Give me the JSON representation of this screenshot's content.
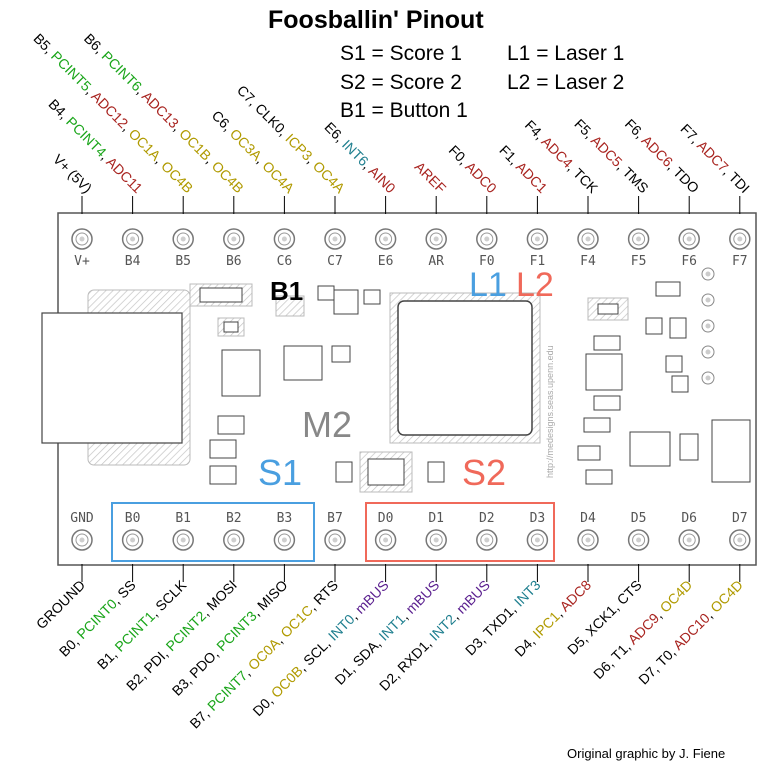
{
  "title": "Foosballin' Pinout",
  "legend": [
    {
      "key": "S1",
      "text": "S1 = Score 1"
    },
    {
      "key": "L1",
      "text": "L1 = Laser 1"
    },
    {
      "key": "S2",
      "text": "S2 = Score 2"
    },
    {
      "key": "L2",
      "text": "L2 = Laser 2"
    },
    {
      "key": "B1",
      "text": "B1 = Button 1"
    }
  ],
  "credit": "Original graphic by J. Fiene",
  "board": {
    "name": "M2",
    "side_text": "http://medesigns.seas.upenn.edu",
    "markers": {
      "B1": {
        "text": "B1",
        "color": "#000000"
      },
      "L1": {
        "text": "L1",
        "color": "#4a9fe0"
      },
      "L2": {
        "text": "L2",
        "color": "#f0695a"
      },
      "S1": {
        "text": "S1",
        "color": "#4a9fe0"
      },
      "S2": {
        "text": "S2",
        "color": "#f0695a"
      }
    },
    "top_pins": [
      "V+",
      "B4",
      "B5",
      "B6",
      "C6",
      "C7",
      "E6",
      "AR",
      "F0",
      "F1",
      "F4",
      "F5",
      "F6",
      "F7"
    ],
    "bottom_pins": [
      "GND",
      "B0",
      "B1",
      "B2",
      "B3",
      "B7",
      "D0",
      "D1",
      "D2",
      "D3",
      "D4",
      "D5",
      "D6",
      "D7"
    ]
  },
  "colors": {
    "black": "#000000",
    "green": "#1aa51a",
    "red": "#a8231f",
    "olive": "#b09a00",
    "teal": "#1f7f8f",
    "purple": "#5a1f8f",
    "blue_box": "#4a9fe0",
    "red_box": "#f0695a"
  },
  "top_labels": [
    {
      "pin": "V+",
      "parts": [
        {
          "t": "V+ (5V)",
          "c": "black"
        }
      ]
    },
    {
      "pin": "B4",
      "parts": [
        {
          "t": "B4, ",
          "c": "black"
        },
        {
          "t": "PCINT4",
          "c": "green"
        },
        {
          "t": ", ",
          "c": "black"
        },
        {
          "t": "ADC11",
          "c": "red"
        }
      ]
    },
    {
      "pin": "B5",
      "parts": [
        {
          "t": "B5, ",
          "c": "black"
        },
        {
          "t": "PCINT5",
          "c": "green"
        },
        {
          "t": ", ",
          "c": "black"
        },
        {
          "t": "ADC12",
          "c": "red"
        },
        {
          "t": ", ",
          "c": "black"
        },
        {
          "t": "OC1A",
          "c": "olive"
        },
        {
          "t": ", ",
          "c": "black"
        },
        {
          "t": "OC4B",
          "c": "olive"
        }
      ]
    },
    {
      "pin": "B6",
      "parts": [
        {
          "t": "B6, ",
          "c": "black"
        },
        {
          "t": "PCINT6",
          "c": "green"
        },
        {
          "t": ", ",
          "c": "black"
        },
        {
          "t": "ADC13",
          "c": "red"
        },
        {
          "t": ", ",
          "c": "black"
        },
        {
          "t": "OC1B",
          "c": "olive"
        },
        {
          "t": ", ",
          "c": "black"
        },
        {
          "t": "OC4B",
          "c": "olive"
        }
      ]
    },
    {
      "pin": "C6",
      "parts": [
        {
          "t": "C6, ",
          "c": "black"
        },
        {
          "t": "OC3A",
          "c": "olive"
        },
        {
          "t": ", ",
          "c": "black"
        },
        {
          "t": "OC4A",
          "c": "olive"
        }
      ]
    },
    {
      "pin": "C7",
      "parts": [
        {
          "t": "C7, CLK0, ",
          "c": "black"
        },
        {
          "t": "ICP3",
          "c": "olive"
        },
        {
          "t": ", ",
          "c": "black"
        },
        {
          "t": "OC4A",
          "c": "olive"
        }
      ]
    },
    {
      "pin": "E6",
      "parts": [
        {
          "t": "E6, ",
          "c": "black"
        },
        {
          "t": "INT6",
          "c": "teal"
        },
        {
          "t": ", ",
          "c": "black"
        },
        {
          "t": "AIN0",
          "c": "red"
        }
      ]
    },
    {
      "pin": "AR",
      "parts": [
        {
          "t": "AREF",
          "c": "red"
        }
      ]
    },
    {
      "pin": "F0",
      "parts": [
        {
          "t": "F0, ",
          "c": "black"
        },
        {
          "t": "ADC0",
          "c": "red"
        }
      ]
    },
    {
      "pin": "F1",
      "parts": [
        {
          "t": "F1, ",
          "c": "black"
        },
        {
          "t": "ADC1",
          "c": "red"
        }
      ]
    },
    {
      "pin": "F4",
      "parts": [
        {
          "t": "F4, ",
          "c": "black"
        },
        {
          "t": "ADC4",
          "c": "red"
        },
        {
          "t": ", TCK",
          "c": "black"
        }
      ]
    },
    {
      "pin": "F5",
      "parts": [
        {
          "t": "F5, ",
          "c": "black"
        },
        {
          "t": "ADC5",
          "c": "red"
        },
        {
          "t": ", TMS",
          "c": "black"
        }
      ]
    },
    {
      "pin": "F6",
      "parts": [
        {
          "t": "F6, ",
          "c": "black"
        },
        {
          "t": "ADC6",
          "c": "red"
        },
        {
          "t": ", TDO",
          "c": "black"
        }
      ]
    },
    {
      "pin": "F7",
      "parts": [
        {
          "t": "F7, ",
          "c": "black"
        },
        {
          "t": "ADC7",
          "c": "red"
        },
        {
          "t": ", TDI",
          "c": "black"
        }
      ]
    }
  ],
  "bottom_labels": [
    {
      "pin": "GND",
      "parts": [
        {
          "t": "GROUND",
          "c": "black"
        }
      ]
    },
    {
      "pin": "B0",
      "parts": [
        {
          "t": "B0, ",
          "c": "black"
        },
        {
          "t": "PCINT0",
          "c": "green"
        },
        {
          "t": ", SS",
          "c": "black"
        }
      ]
    },
    {
      "pin": "B1",
      "parts": [
        {
          "t": "B1, ",
          "c": "black"
        },
        {
          "t": "PCINT1",
          "c": "green"
        },
        {
          "t": ", SCLK",
          "c": "black"
        }
      ]
    },
    {
      "pin": "B2",
      "parts": [
        {
          "t": "B2, PDI, ",
          "c": "black"
        },
        {
          "t": "PCINT2",
          "c": "green"
        },
        {
          "t": ", MOSI",
          "c": "black"
        }
      ]
    },
    {
      "pin": "B3",
      "parts": [
        {
          "t": "B3, PDO, ",
          "c": "black"
        },
        {
          "t": "PCINT3",
          "c": "green"
        },
        {
          "t": ", MISO",
          "c": "black"
        }
      ]
    },
    {
      "pin": "B7",
      "parts": [
        {
          "t": "B7, ",
          "c": "black"
        },
        {
          "t": "PCINT7",
          "c": "green"
        },
        {
          "t": ", ",
          "c": "black"
        },
        {
          "t": "OC0A",
          "c": "olive"
        },
        {
          "t": ", ",
          "c": "black"
        },
        {
          "t": "OC1C",
          "c": "olive"
        },
        {
          "t": ", RTS",
          "c": "black"
        }
      ]
    },
    {
      "pin": "D0",
      "parts": [
        {
          "t": "D0, ",
          "c": "black"
        },
        {
          "t": "OC0B",
          "c": "olive"
        },
        {
          "t": ", SCL, ",
          "c": "black"
        },
        {
          "t": "INT0",
          "c": "teal"
        },
        {
          "t": ", ",
          "c": "black"
        },
        {
          "t": "mBUS",
          "c": "purple"
        }
      ]
    },
    {
      "pin": "D1",
      "parts": [
        {
          "t": "D1, SDA, ",
          "c": "black"
        },
        {
          "t": "INT1",
          "c": "teal"
        },
        {
          "t": ", ",
          "c": "black"
        },
        {
          "t": "mBUS",
          "c": "purple"
        }
      ]
    },
    {
      "pin": "D2",
      "parts": [
        {
          "t": "D2, RXD1, ",
          "c": "black"
        },
        {
          "t": "INT2",
          "c": "teal"
        },
        {
          "t": ", ",
          "c": "black"
        },
        {
          "t": "mBUS",
          "c": "purple"
        }
      ]
    },
    {
      "pin": "D3",
      "parts": [
        {
          "t": "D3, TXD1, ",
          "c": "black"
        },
        {
          "t": "INT3",
          "c": "teal"
        }
      ]
    },
    {
      "pin": "D4",
      "parts": [
        {
          "t": "D4, ",
          "c": "black"
        },
        {
          "t": "IPC1",
          "c": "olive"
        },
        {
          "t": ", ",
          "c": "black"
        },
        {
          "t": "ADC8",
          "c": "red"
        }
      ]
    },
    {
      "pin": "D5",
      "parts": [
        {
          "t": "D5, XCK1, CTS",
          "c": "black"
        }
      ]
    },
    {
      "pin": "D6",
      "parts": [
        {
          "t": "D6, T1, ",
          "c": "black"
        },
        {
          "t": "ADC9",
          "c": "red"
        },
        {
          "t": ", ",
          "c": "black"
        },
        {
          "t": "OC4D",
          "c": "olive"
        }
      ]
    },
    {
      "pin": "D7",
      "parts": [
        {
          "t": "D7, T0, ",
          "c": "black"
        },
        {
          "t": "ADC10",
          "c": "red"
        },
        {
          "t": ", ",
          "c": "black"
        },
        {
          "t": "OC4D",
          "c": "olive"
        }
      ]
    }
  ]
}
